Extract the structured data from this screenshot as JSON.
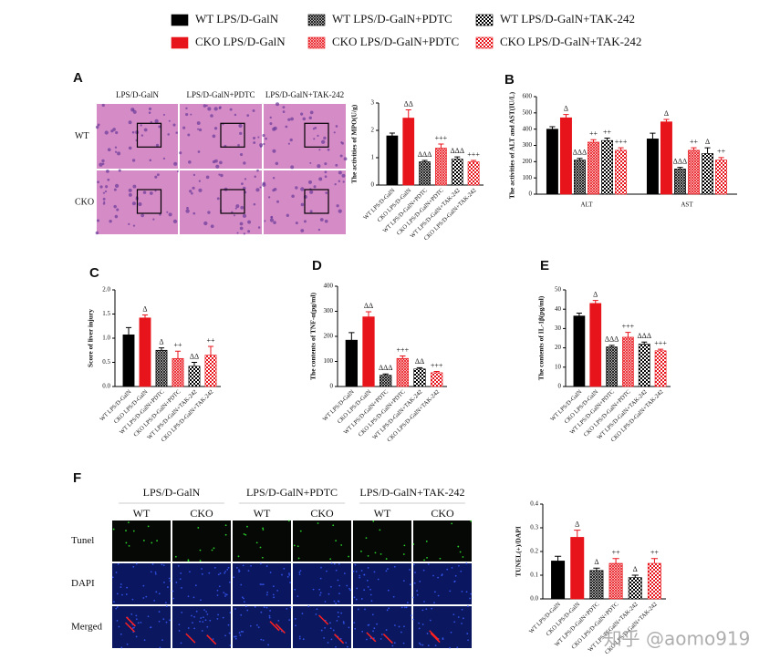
{
  "legend": [
    {
      "name": "WT LPS/D-GalN",
      "color": "#000000",
      "pattern": "solid"
    },
    {
      "name": "CKO LPS/D-GalN",
      "color": "#e8141b",
      "pattern": "solid"
    },
    {
      "name": "WT LPS/D-GalN+PDTC",
      "color": "#000000",
      "pattern": "hatch"
    },
    {
      "name": "CKO LPS/D-GalN+PDTC",
      "color": "#e8141b",
      "pattern": "hatch"
    },
    {
      "name": "WT LPS/D-GalN+TAK-242",
      "color": "#000000",
      "pattern": "check"
    },
    {
      "name": "CKO LPS/D-GalN+TAK-242",
      "color": "#e8141b",
      "pattern": "check"
    }
  ],
  "image_panels": [
    {
      "panel": "A",
      "column_headers": [
        "LPS/D-GalN",
        "LPS/D-GalN+PDTC",
        "LPS/D-GalN+TAK-242"
      ],
      "row_labels": [
        "WT",
        "CKO"
      ]
    },
    {
      "panel": "F",
      "column_headers": [
        "LPS/D-GalN",
        "LPS/D-GalN+PDTC",
        "LPS/D-GalN+TAK-242"
      ],
      "sub_headers": [
        "WT",
        "CKO",
        "WT",
        "CKO",
        "WT",
        "CKO"
      ],
      "row_labels": [
        "Tunel",
        "DAPI",
        "Merged"
      ]
    }
  ],
  "watermark": "知乎 @aomo919",
  "chart_data": [
    {
      "type": "bar",
      "y_label": "The activities of MPO(U/g)",
      "categories": [
        "WT LPS/D-GalN",
        "CKO LPS/D-GalN",
        "WT LPS/D-GalN+PDTC",
        "CKO LPS/D-GalN+PDTC",
        "WT LPS/D-GalN+TAK-242",
        "CKO LPS/D-GalN+TAK-242"
      ],
      "values": [
        1.8,
        2.45,
        0.85,
        1.35,
        0.95,
        0.85
      ],
      "errors": [
        0.1,
        0.3,
        0.05,
        0.15,
        0.08,
        0.05
      ],
      "annotations": [
        null,
        "ΔΔ",
        "ΔΔΔ",
        "+++",
        "ΔΔΔ",
        "+++"
      ],
      "colors": [
        "#000000",
        "#e8141b",
        "#000000",
        "#e8141b",
        "#000000",
        "#e8141b"
      ],
      "patterns": [
        "solid",
        "solid",
        "hatch",
        "hatch",
        "check",
        "check"
      ],
      "ylim": [
        0,
        3
      ],
      "yticks": [
        0,
        1,
        2,
        3
      ]
    },
    {
      "type": "grouped_bar",
      "panel": "B",
      "y_label": "The activities of ALT and AST(IU/L)",
      "categories": [
        "ALT",
        "AST"
      ],
      "series": [
        {
          "color": "#000000",
          "pattern": "solid",
          "values": [
            400,
            340
          ],
          "errors": [
            15,
            35
          ],
          "annotations": [
            null,
            null
          ]
        },
        {
          "color": "#e8141b",
          "pattern": "solid",
          "values": [
            470,
            445
          ],
          "errors": [
            20,
            15
          ],
          "annotations": [
            "Δ",
            "Δ"
          ]
        },
        {
          "color": "#000000",
          "pattern": "hatch",
          "values": [
            210,
            155
          ],
          "errors": [
            10,
            10
          ],
          "annotations": [
            "ΔΔΔ",
            "ΔΔΔ"
          ]
        },
        {
          "color": "#e8141b",
          "pattern": "hatch",
          "values": [
            320,
            270
          ],
          "errors": [
            15,
            15
          ],
          "annotations": [
            "++",
            "++"
          ]
        },
        {
          "color": "#000000",
          "pattern": "check",
          "values": [
            330,
            250
          ],
          "errors": [
            15,
            35
          ],
          "annotations": [
            "++",
            "Δ"
          ]
        },
        {
          "color": "#e8141b",
          "pattern": "check",
          "values": [
            270,
            210
          ],
          "errors": [
            15,
            15
          ],
          "annotations": [
            "+++",
            "++"
          ]
        }
      ],
      "ylim": [
        0,
        600
      ],
      "yticks": [
        0,
        100,
        200,
        300,
        400,
        500,
        600
      ]
    },
    {
      "type": "bar",
      "panel": "C",
      "y_label": "Score of liver injury",
      "categories": [
        "WT LPS/D-GalN",
        "CKO LPS/D-GalN",
        "WT LPS/D-GalN+PDTC",
        "CKO LPS/D-GalN+PDTC",
        "WT LPS/D-GalN+TAK-242",
        "CKO LPS/D-GalN+TAK-242"
      ],
      "values": [
        1.07,
        1.42,
        0.75,
        0.58,
        0.42,
        0.65
      ],
      "errors": [
        0.15,
        0.06,
        0.05,
        0.15,
        0.08,
        0.18
      ],
      "annotations": [
        null,
        "Δ",
        "Δ",
        "++",
        "ΔΔ",
        "++"
      ],
      "colors": [
        "#000000",
        "#e8141b",
        "#000000",
        "#e8141b",
        "#000000",
        "#e8141b"
      ],
      "patterns": [
        "solid",
        "solid",
        "hatch",
        "hatch",
        "check",
        "check"
      ],
      "ylim": [
        0,
        2
      ],
      "yticks": [
        {
          "value": 0,
          "label": "0.0"
        },
        0.5,
        {
          "value": 1,
          "label": "1.0"
        },
        1.5,
        {
          "value": 2,
          "label": "2.0"
        }
      ]
    },
    {
      "type": "bar",
      "panel": "D",
      "y_label": "The contents of TNF-α(pg/ml)",
      "categories": [
        "WT LPS/D-GalN",
        "CKO LPS/D-GalN",
        "WT LPS/D-GalN+PDTC",
        "CKO LPS/D-GalN+PDTC",
        "WT LPS/D-GalN+TAK-242",
        "CKO LPS/D-GalN+TAK-242"
      ],
      "values": [
        185,
        278,
        45,
        112,
        70,
        55
      ],
      "errors": [
        30,
        20,
        5,
        10,
        5,
        5
      ],
      "annotations": [
        null,
        "ΔΔ",
        "ΔΔΔ",
        "+++",
        "ΔΔ",
        "+++"
      ],
      "colors": [
        "#000000",
        "#e8141b",
        "#000000",
        "#e8141b",
        "#000000",
        "#e8141b"
      ],
      "patterns": [
        "solid",
        "solid",
        "hatch",
        "hatch",
        "check",
        "check"
      ],
      "ylim": [
        0,
        400
      ],
      "yticks": [
        0,
        100,
        200,
        300,
        400
      ]
    },
    {
      "type": "bar",
      "panel": "E",
      "y_label": "The contents of IL-1β(pg/ml)",
      "categories": [
        "WT LPS/D-GalN",
        "CKO LPS/D-GalN",
        "WT LPS/D-GalN+PDTC",
        "CKO LPS/D-GalN+PDTC",
        "WT LPS/D-GalN+TAK-242",
        "CKO LPS/D-GalN+TAK-242"
      ],
      "values": [
        36.5,
        43,
        20.5,
        25.5,
        22,
        18.5
      ],
      "errors": [
        1.5,
        1.5,
        0.8,
        2.5,
        1,
        0.8
      ],
      "annotations": [
        null,
        "Δ",
        "ΔΔΔ",
        "+++",
        "ΔΔΔ",
        "+++"
      ],
      "colors": [
        "#000000",
        "#e8141b",
        "#000000",
        "#e8141b",
        "#000000",
        "#e8141b"
      ],
      "patterns": [
        "solid",
        "solid",
        "hatch",
        "hatch",
        "check",
        "check"
      ],
      "ylim": [
        0,
        50
      ],
      "yticks": [
        0,
        10,
        20,
        30,
        40,
        50
      ]
    },
    {
      "type": "bar",
      "y_label": "TUNEL(+)/DAPI",
      "categories": [
        "WT LPS/D-GalN",
        "CKO LPS/D-GalN",
        "WT LPS/D-GalN+PDTC",
        "CKO LPS/D-GalN+PDTC",
        "WT LPS/D-GalN+TAK-242",
        "CKO LPS/D-GalN+TAK-242"
      ],
      "values": [
        0.16,
        0.26,
        0.12,
        0.15,
        0.09,
        0.15
      ],
      "errors": [
        0.02,
        0.03,
        0.01,
        0.02,
        0.01,
        0.02
      ],
      "annotations": [
        null,
        "Δ",
        "Δ",
        "++",
        "Δ",
        "++"
      ],
      "colors": [
        "#000000",
        "#e8141b",
        "#000000",
        "#e8141b",
        "#000000",
        "#e8141b"
      ],
      "patterns": [
        "solid",
        "solid",
        "hatch",
        "hatch",
        "check",
        "check"
      ],
      "ylim": [
        0,
        0.4
      ],
      "yticks": [
        {
          "value": 0,
          "label": "0.0"
        },
        0.1,
        0.2,
        0.3,
        0.4
      ]
    }
  ]
}
